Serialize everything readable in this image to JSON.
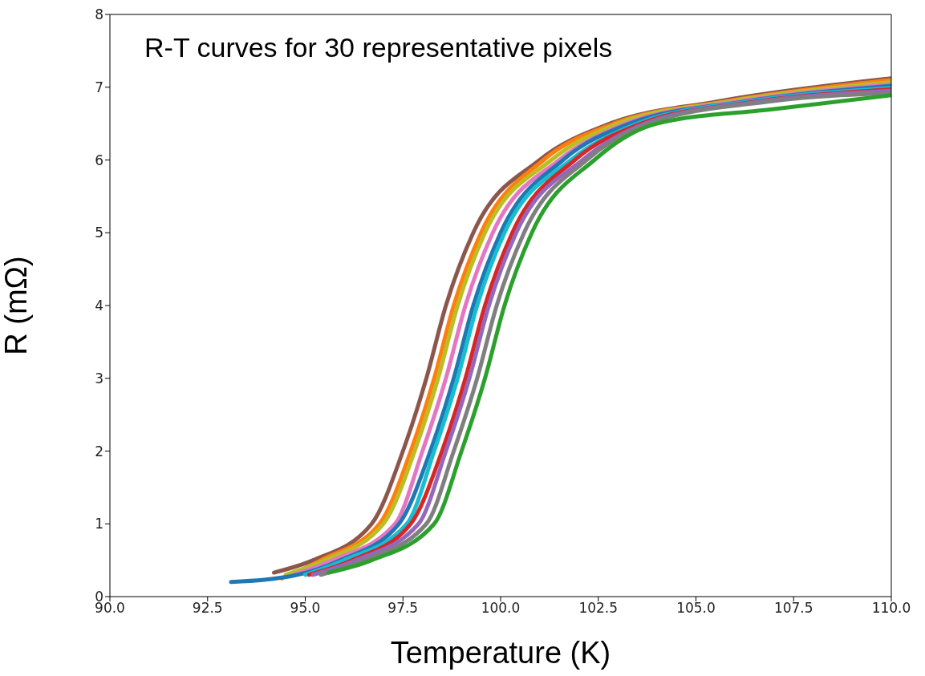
{
  "chart_data": {
    "type": "line",
    "title": "R-T curves for 30 representative pixels",
    "xlabel": "Temperature (K)",
    "ylabel": "R (mΩ)",
    "xlim": [
      90,
      110
    ],
    "ylim": [
      0,
      8
    ],
    "xticks": [
      {
        "value": 90,
        "label": "90.0"
      },
      {
        "value": 92.5,
        "label": "92.5"
      },
      {
        "value": 95,
        "label": "95.0"
      },
      {
        "value": 97.5,
        "label": "97.5"
      },
      {
        "value": 100,
        "label": "100.0"
      },
      {
        "value": 102.5,
        "label": "102.5"
      },
      {
        "value": 105,
        "label": "105.0"
      },
      {
        "value": 107.5,
        "label": "107.5"
      },
      {
        "value": 110,
        "label": "110.0"
      }
    ],
    "yticks": [
      0,
      1,
      2,
      3,
      4,
      5,
      6,
      7,
      8
    ],
    "series": [
      {
        "color": "#8c564b",
        "x": [
          94.2,
          95.2,
          96.7,
          97.5,
          98.1,
          98.6,
          99.3,
          101.0,
          102.8,
          105.5,
          110
        ],
        "values": [
          0.33,
          0.5,
          1,
          2,
          3,
          4,
          5,
          6,
          6.5,
          6.8,
          7.12
        ]
      },
      {
        "color": "#ff7f0e",
        "x": [
          94.4,
          95.4,
          96.9,
          97.7,
          98.3,
          98.8,
          99.5,
          101.1,
          102.9,
          105.7,
          110
        ],
        "values": [
          0.25,
          0.5,
          1,
          2,
          3,
          4,
          5,
          6,
          6.5,
          6.8,
          7.1
        ]
      },
      {
        "color": "#bcbd22",
        "x": [
          94.5,
          95.5,
          97.0,
          97.8,
          98.4,
          98.9,
          99.6,
          101.3,
          103.0,
          105.8,
          110
        ],
        "values": [
          0.3,
          0.5,
          1,
          2,
          3,
          4,
          5,
          6,
          6.5,
          6.8,
          7.07
        ]
      },
      {
        "color": "#e377c2",
        "x": [
          94.7,
          95.7,
          97.3,
          98.0,
          98.6,
          99.1,
          99.8,
          101.5,
          103.2,
          106.0,
          110
        ],
        "values": [
          0.3,
          0.5,
          1,
          2,
          3,
          4,
          5,
          6,
          6.5,
          6.8,
          7.04
        ]
      },
      {
        "color": "#1f77b4",
        "x": [
          93.1,
          94.8,
          95.9,
          97.4,
          98.2,
          98.8,
          99.3,
          100.0,
          101.6,
          103.3,
          106.2,
          110
        ],
        "values": [
          0.2,
          0.3,
          0.5,
          1,
          2,
          3,
          4,
          5,
          6,
          6.5,
          6.8,
          7.02
        ]
      },
      {
        "color": "#17becf",
        "x": [
          95.0,
          96.0,
          97.6,
          98.3,
          98.9,
          99.4,
          100.1,
          101.8,
          103.5,
          106.3,
          110
        ],
        "values": [
          0.3,
          0.5,
          1,
          2,
          3,
          4,
          5,
          6,
          6.5,
          6.8,
          6.99
        ]
      },
      {
        "color": "#d62728",
        "x": [
          95.1,
          96.2,
          97.7,
          98.5,
          99.1,
          99.6,
          100.3,
          101.9,
          103.6,
          106.5,
          110
        ],
        "values": [
          0.3,
          0.5,
          1,
          2,
          3,
          4,
          5,
          6,
          6.5,
          6.8,
          6.97
        ]
      },
      {
        "color": "#9467bd",
        "x": [
          95.2,
          96.3,
          97.9,
          98.6,
          99.2,
          99.7,
          100.4,
          102.1,
          103.7,
          106.6,
          110
        ],
        "values": [
          0.3,
          0.5,
          1,
          2,
          3,
          4,
          5,
          6,
          6.5,
          6.8,
          6.95
        ]
      },
      {
        "color": "#7f7f7f",
        "x": [
          95.4,
          96.5,
          98.1,
          98.8,
          99.4,
          99.9,
          100.6,
          102.2,
          103.8,
          106.8,
          110
        ],
        "values": [
          0.3,
          0.5,
          1,
          2,
          3,
          4,
          5,
          6,
          6.5,
          6.8,
          6.92
        ]
      },
      {
        "color": "#2ca02c",
        "x": [
          95.6,
          96.7,
          98.3,
          99.0,
          99.6,
          100.1,
          100.8,
          102.4,
          104.0,
          107.0,
          110
        ],
        "values": [
          0.33,
          0.5,
          1,
          2,
          3,
          4,
          5,
          6,
          6.5,
          6.7,
          6.89
        ]
      }
    ]
  }
}
